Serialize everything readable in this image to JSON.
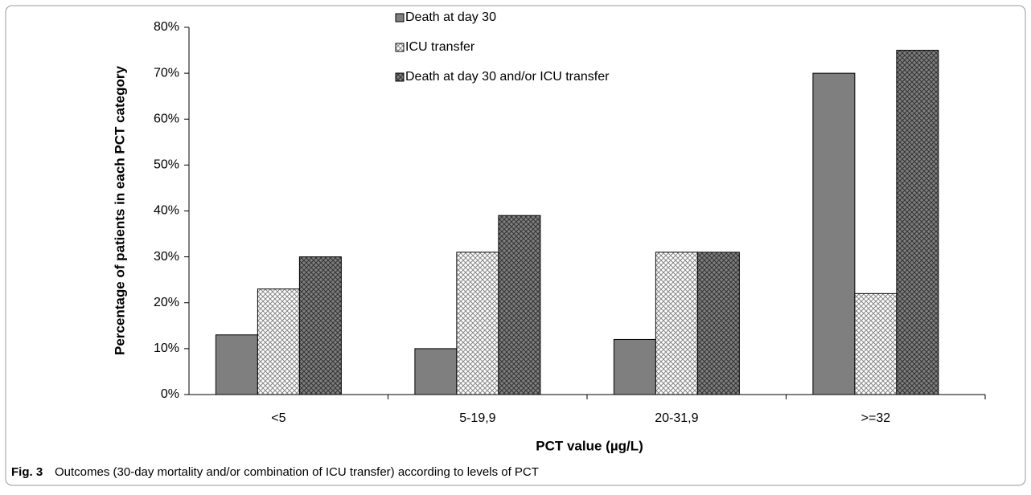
{
  "chart_data": {
    "type": "bar",
    "x_label": "PCT value (µg/L)",
    "y_label": "Percentage of patients in each PCT category",
    "caption_label": "Fig. 3",
    "caption": "Outcomes (30-day mortality and/or combination of ICU transfer) according to levels of PCT",
    "categories": [
      "<5",
      "5-19,9",
      "20-31,9",
      ">=32"
    ],
    "series": [
      {
        "name": "Death at day 30",
        "color": "#7f7f7f",
        "values": [
          13,
          10,
          12,
          70
        ]
      },
      {
        "name": "ICU transfer",
        "color": "#ffffff",
        "values": [
          23,
          31,
          31,
          22
        ]
      },
      {
        "name": "Death at day 30 and/or ICU transfer",
        "color": "#7f7f7f",
        "values": [
          30,
          39,
          31,
          75
        ]
      }
    ],
    "ylim": [
      0,
      80
    ],
    "yticks": [
      {
        "value": 0,
        "label": "0%"
      },
      {
        "value": 10,
        "label": "10%"
      },
      {
        "value": 20,
        "label": "20%"
      },
      {
        "value": 30,
        "label": "30%"
      },
      {
        "value": 40,
        "label": "40%"
      },
      {
        "value": 50,
        "label": "50%"
      },
      {
        "value": 60,
        "label": "60%"
      },
      {
        "value": 70,
        "label": "70%"
      },
      {
        "value": 80,
        "label": "80%"
      }
    ],
    "grid": false
  }
}
